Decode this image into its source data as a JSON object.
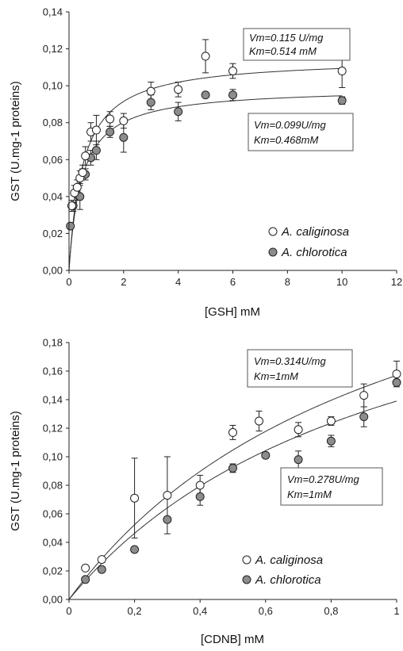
{
  "chart_data": [
    {
      "type": "scatter",
      "xlabel": "[GSH] mM",
      "ylabel": "GST (U.mg-1 proteins)",
      "xlim": [
        0,
        12
      ],
      "ylim": [
        0,
        0.14
      ],
      "xticks": [
        "0",
        "2",
        "4",
        "6",
        "8",
        "10",
        "12"
      ],
      "yticks": [
        "0,00",
        "0,02",
        "0,04",
        "0,06",
        "0,08",
        "0,10",
        "0,12",
        "0,14"
      ],
      "grid": false,
      "legend": "bottom-right",
      "series": [
        {
          "name": "A. caliginosa",
          "marker": "open",
          "fill": "#ffffff",
          "vm": 0.115,
          "km": 0.514,
          "x": [
            0.1,
            0.2,
            0.3,
            0.4,
            0.5,
            0.6,
            0.8,
            1.0,
            1.5,
            2.0,
            3.0,
            4.0,
            5.0,
            6.0,
            10.0
          ],
          "y": [
            0.035,
            0.042,
            0.045,
            0.05,
            0.053,
            0.062,
            0.075,
            0.076,
            0.082,
            0.081,
            0.097,
            0.098,
            0.116,
            0.108,
            0.108
          ],
          "err": [
            0.003,
            0.004,
            0.004,
            0.004,
            0.004,
            0.005,
            0.005,
            0.008,
            0.004,
            0.004,
            0.005,
            0.004,
            0.009,
            0.004,
            0.009
          ]
        },
        {
          "name": "A. chlorotica",
          "marker": "filled",
          "fill": "#8c8c8c",
          "vm": 0.099,
          "km": 0.468,
          "x": [
            0.05,
            0.15,
            0.3,
            0.4,
            0.5,
            0.6,
            0.8,
            1.0,
            1.5,
            2.0,
            3.0,
            4.0,
            5.0,
            6.0,
            10.0
          ],
          "y": [
            0.024,
            0.035,
            0.041,
            0.04,
            0.053,
            0.052,
            0.061,
            0.065,
            0.075,
            0.072,
            0.091,
            0.086,
            0.095,
            0.095,
            0.092
          ],
          "err": [
            0.001,
            0.003,
            0.003,
            0.007,
            0.002,
            0.003,
            0.004,
            0.005,
            0.003,
            0.008,
            0.004,
            0.005,
            0.001,
            0.003,
            0.002
          ]
        }
      ],
      "annotations": [
        {
          "line1": "Vm=0.115 U/mg",
          "line2": "Km=0.514 mM"
        },
        {
          "line1": "Vm=0.099U/mg",
          "line2": "Km=0.468mM"
        }
      ]
    },
    {
      "type": "scatter",
      "xlabel": "[CDNB] mM",
      "ylabel": "GST (U.mg-1 proteins)",
      "xlim": [
        0,
        1
      ],
      "ylim": [
        0,
        0.18
      ],
      "xticks": [
        "0",
        "0,2",
        "0,4",
        "0,6",
        "0,8",
        "1"
      ],
      "yticks": [
        "0,00",
        "0,02",
        "0,04",
        "0,06",
        "0,08",
        "0,10",
        "0,12",
        "0,14",
        "0,16",
        "0,18"
      ],
      "grid": false,
      "legend": "bottom-right",
      "series": [
        {
          "name": "A. caliginosa",
          "marker": "open",
          "fill": "#ffffff",
          "vm": 0.314,
          "km": 1,
          "x": [
            0.05,
            0.1,
            0.2,
            0.3,
            0.4,
            0.5,
            0.58,
            0.7,
            0.8,
            0.9,
            1.0
          ],
          "y": [
            0.022,
            0.028,
            0.071,
            0.073,
            0.08,
            0.117,
            0.125,
            0.119,
            0.125,
            0.143,
            0.158
          ],
          "err": [
            0.001,
            0.002,
            0.028,
            0.027,
            0.007,
            0.005,
            0.007,
            0.005,
            0.003,
            0.008,
            0.009
          ]
        },
        {
          "name": "A. chlorotica",
          "marker": "filled",
          "fill": "#8c8c8c",
          "vm": 0.278,
          "km": 1,
          "x": [
            0.05,
            0.1,
            0.2,
            0.3,
            0.4,
            0.5,
            0.6,
            0.7,
            0.8,
            0.9,
            1.0
          ],
          "y": [
            0.014,
            0.021,
            0.035,
            0.056,
            0.072,
            0.092,
            0.101,
            0.098,
            0.111,
            0.128,
            0.152
          ],
          "err": [
            0.001,
            0.001,
            0.001,
            0.001,
            0.006,
            0.003,
            0.002,
            0.006,
            0.004,
            0.007,
            0.002
          ]
        }
      ],
      "annotations": [
        {
          "line1": "Vm=0.314U/mg",
          "line2": "Km=1mM"
        },
        {
          "line1": "Vm=0.278U/mg",
          "line2": "Km=1mM"
        }
      ]
    }
  ]
}
